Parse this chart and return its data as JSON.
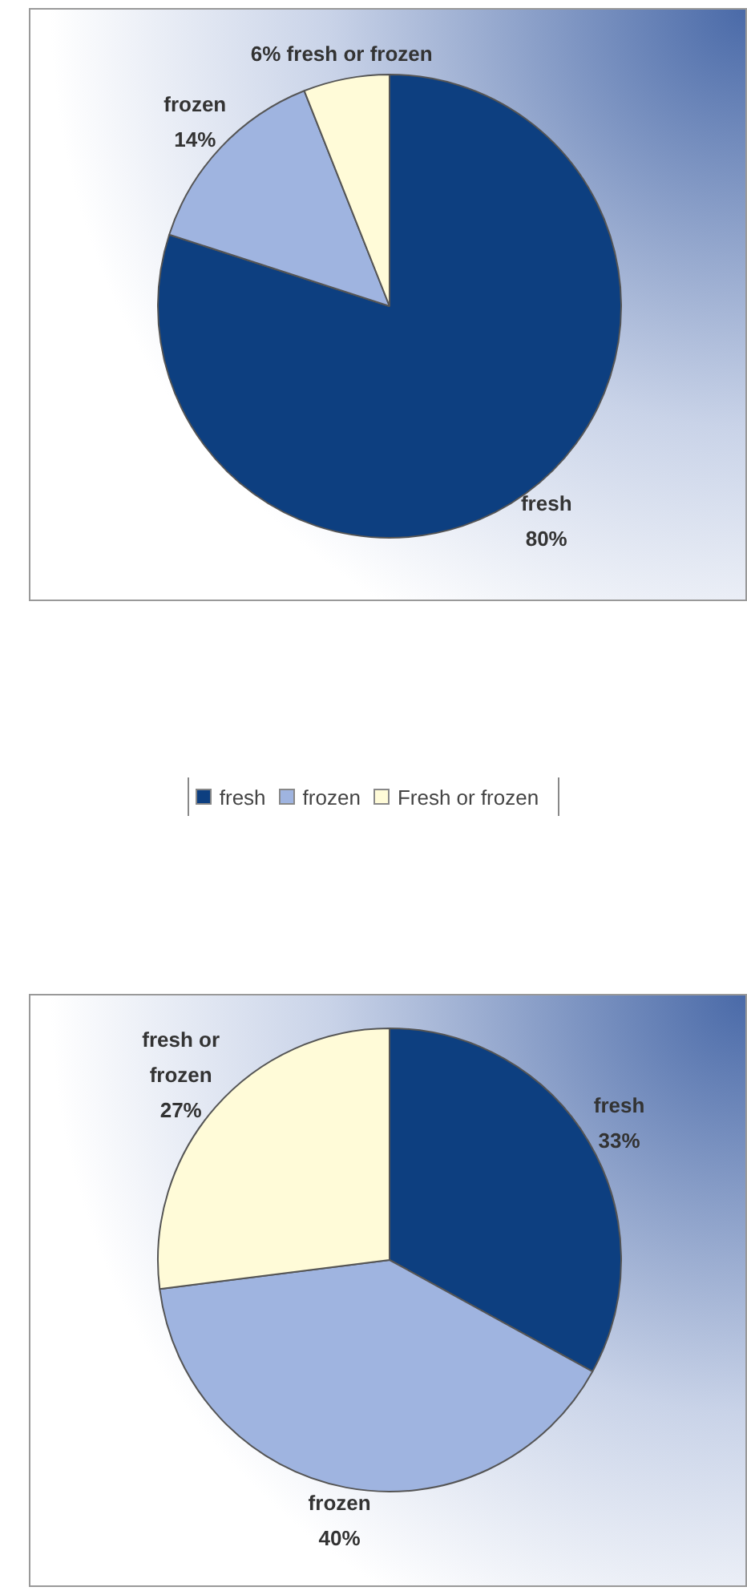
{
  "chart_data": [
    {
      "type": "pie",
      "categories": [
        "fresh",
        "frozen",
        "Fresh or frozen"
      ],
      "values": [
        80,
        14,
        6
      ],
      "colors": [
        "#0d3f80",
        "#9fb4e0",
        "#fffbd8"
      ],
      "value_labels": [
        "fresh\n80%",
        "frozen\n14%",
        "6% fresh or frozen"
      ],
      "legend": "bottom"
    },
    {
      "type": "pie",
      "categories": [
        "fresh",
        "frozen",
        "fresh or frozen"
      ],
      "values": [
        33,
        40,
        27
      ],
      "colors": [
        "#0d3f80",
        "#9fb4e0",
        "#fffbd8"
      ],
      "value_labels": [
        "33%",
        "40%",
        "27%"
      ]
    }
  ]
}
